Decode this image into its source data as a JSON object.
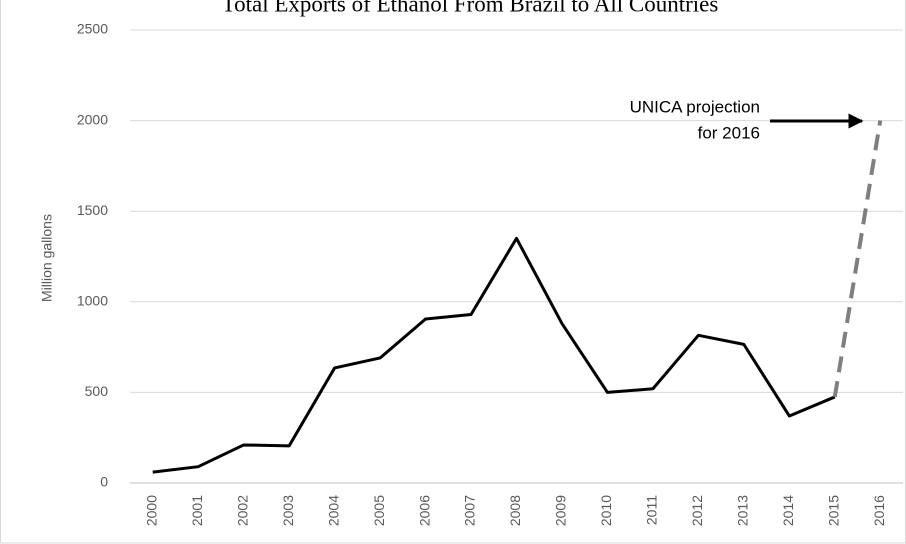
{
  "chart_data": {
    "type": "line",
    "title": "Total Exports of Ethanol From Brazil to All Countries",
    "y_label": "Million gallons",
    "categories": [
      "2000",
      "2001",
      "2002",
      "2003",
      "2004",
      "2005",
      "2006",
      "2007",
      "2008",
      "2009",
      "2010",
      "2011",
      "2012",
      "2013",
      "2014",
      "2015",
      "2016"
    ],
    "series": [
      {
        "color": "#000000",
        "dashed": false,
        "values": [
          60,
          90,
          210,
          205,
          635,
          690,
          905,
          930,
          1350,
          880,
          500,
          520,
          815,
          765,
          370,
          475,
          null
        ]
      },
      {
        "color": "#7f7f7f",
        "dashed": true,
        "values": [
          null,
          null,
          null,
          null,
          null,
          null,
          null,
          null,
          null,
          null,
          null,
          null,
          null,
          null,
          null,
          475,
          2000
        ]
      }
    ],
    "annotation": [
      "UNICA projection",
      "for 2016"
    ],
    "ylim": [
      0,
      2500
    ],
    "yticks": [
      0,
      500,
      1000,
      1500,
      2000,
      2500
    ],
    "grid": true
  }
}
